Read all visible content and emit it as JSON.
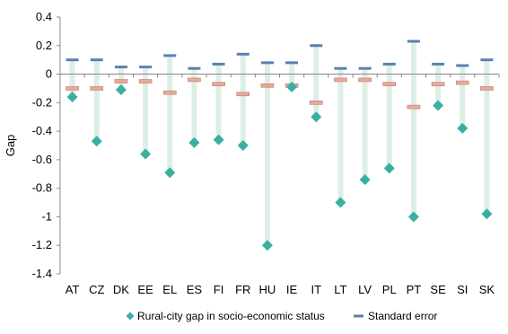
{
  "chart_data": {
    "type": "scatter",
    "ylabel": "Gap",
    "ylim": [
      -1.4,
      0.4
    ],
    "yticks": [
      0.4,
      0.2,
      0,
      -0.2,
      -0.4,
      -0.6,
      -0.8,
      -1,
      -1.2,
      -1.4
    ],
    "ytick_labels": [
      "0.4",
      "0.2",
      "0",
      "-0.2",
      "-0.4",
      "-0.6",
      "-0.8",
      "-1",
      "-1.2",
      "-1.4"
    ],
    "categories": [
      "AT",
      "CZ",
      "DK",
      "EE",
      "EL",
      "ES",
      "FI",
      "FR",
      "HU",
      "IE",
      "IT",
      "LT",
      "LV",
      "PL",
      "PT",
      "SE",
      "SI",
      "SK"
    ],
    "series": [
      {
        "name": "Rural-city gap in socio-economic status",
        "marker": "diamond",
        "color": "#3aafa0",
        "values": [
          -0.16,
          -0.47,
          -0.11,
          -0.56,
          -0.69,
          -0.48,
          -0.46,
          -0.5,
          -1.2,
          -0.09,
          -0.3,
          -0.9,
          -0.74,
          -0.66,
          -1.0,
          -0.22,
          -0.38,
          -0.98
        ]
      },
      {
        "name": "Standard error",
        "marker": "dash",
        "color": "#5b7fb0",
        "upper": [
          0.1,
          0.1,
          0.05,
          0.05,
          0.13,
          0.04,
          0.07,
          0.14,
          0.08,
          0.08,
          0.2,
          0.04,
          0.04,
          0.07,
          0.23,
          0.07,
          0.06,
          0.1
        ],
        "lower": [
          -0.1,
          -0.1,
          -0.05,
          -0.05,
          -0.13,
          -0.04,
          -0.07,
          -0.14,
          -0.08,
          -0.08,
          -0.2,
          -0.04,
          -0.04,
          -0.07,
          -0.23,
          -0.07,
          -0.06,
          -0.1
        ]
      }
    ],
    "colors": {
      "stem": "#dcefe6",
      "lower_marker": "#e8a89a",
      "axis": "#888888"
    },
    "grid": false,
    "legend_position": "bottom"
  }
}
